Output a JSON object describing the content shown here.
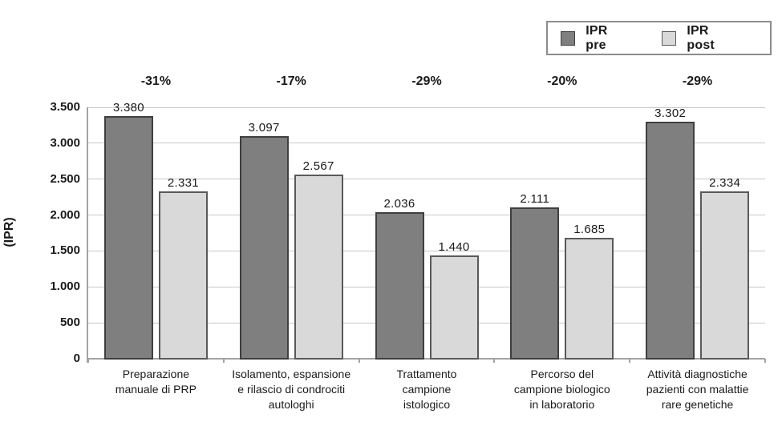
{
  "chart_data": {
    "type": "bar",
    "title": "",
    "ylabel": "(IPR)",
    "ylim": [
      0,
      3500
    ],
    "ytick_step": 500,
    "ytick_labels": [
      "0",
      "500",
      "1.000",
      "1.500",
      "2.000",
      "2.500",
      "3.000",
      "3.500"
    ],
    "grid": true,
    "legend_position": "top-right",
    "categories": [
      "Preparazione\nmanuale di PRP",
      "Isolamento, espansione\ne rilascio di condrociti\nautologhi",
      "Trattamento\ncampione\nistologico",
      "Percorso del\ncampione biologico\nin laboratorio",
      "Attività diagnostiche\npazienti con malattie\nrare genetiche"
    ],
    "series": [
      {
        "name": "IPR pre",
        "color": "#7f7f7f",
        "border_color": "#3f3f3f",
        "values": [
          3380,
          3097,
          2036,
          2111,
          3302
        ],
        "value_labels": [
          "3.380",
          "3.097",
          "2.036",
          "2.111",
          "3.302"
        ]
      },
      {
        "name": "IPR post",
        "color": "#d9d9d9",
        "border_color": "#595959",
        "values": [
          2331,
          2567,
          1440,
          1685,
          2334
        ],
        "value_labels": [
          "2.331",
          "2.567",
          "1.440",
          "1.685",
          "2.334"
        ]
      }
    ],
    "delta_labels": [
      "-31%",
      "-17%",
      "-29%",
      "-20%",
      "-29%"
    ],
    "colors": {
      "gridline": "#c8c8c8",
      "axis": "#a3a3a3",
      "legend_border": "#8c8c8c",
      "text": "#1a1a1a"
    }
  }
}
